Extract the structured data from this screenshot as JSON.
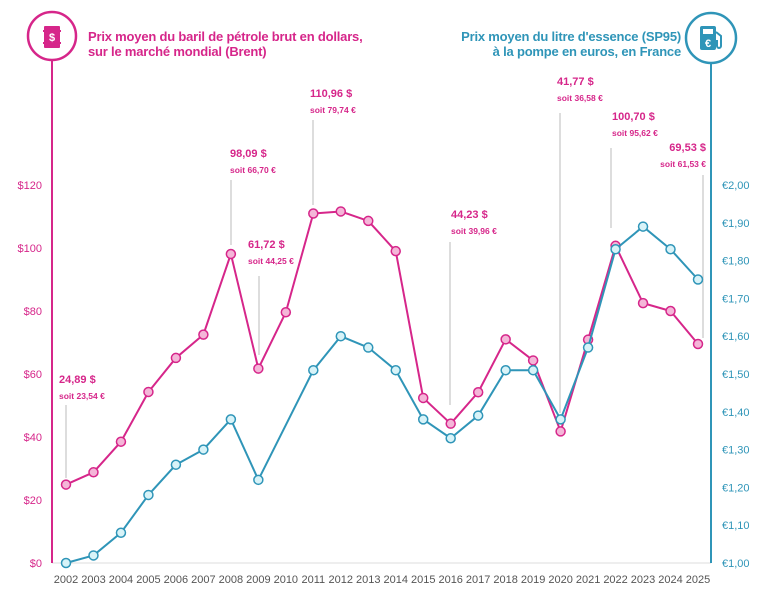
{
  "header": {
    "left_title_line1": "Prix moyen du baril de pétrole brut en dollars,",
    "left_title_line2": "sur le marché mondial (Brent)",
    "right_title_line1": "Prix moyen du litre d'essence (SP95)",
    "right_title_line2": "à la pompe en euros, en France",
    "left_icon": "oil-barrel-dollar-icon",
    "right_icon": "fuel-pump-euro-icon"
  },
  "colors": {
    "brent": "#d6268a",
    "brent_fill": "#f4b6d8",
    "fuel": "#2f95b8",
    "fuel_fill": "#d8f3f8",
    "leader": "#bbbbbb"
  },
  "chart_data": {
    "type": "line",
    "x": [
      2002,
      2003,
      2004,
      2005,
      2006,
      2007,
      2008,
      2009,
      2010,
      2011,
      2012,
      2013,
      2014,
      2015,
      2016,
      2017,
      2018,
      2019,
      2020,
      2021,
      2022,
      2023,
      2024,
      2025
    ],
    "x_tick_labels": [
      "2002",
      "2003",
      "2004",
      "2005",
      "2006",
      "2007",
      "2008",
      "2009",
      "2010",
      "2011",
      "2012",
      "2013",
      "2014",
      "2015",
      "2016",
      "2017",
      "2018",
      "2019",
      "2020",
      "2021",
      "2022",
      "2023",
      "2024",
      "2025"
    ],
    "left_axis": {
      "range": [
        0,
        120
      ],
      "ticks": [
        "$0",
        "$20",
        "$40",
        "$60",
        "$80",
        "$100",
        "$120"
      ],
      "tick_values": [
        0,
        20,
        40,
        60,
        80,
        100,
        120
      ]
    },
    "right_axis": {
      "range": [
        1.0,
        2.0
      ],
      "ticks": [
        "€1,00",
        "€1,10",
        "€1,20",
        "€1,30",
        "€1,40",
        "€1,50",
        "€1,60",
        "€1,70",
        "€1,80",
        "€1,90",
        "€2,00"
      ],
      "tick_values": [
        1.0,
        1.1,
        1.2,
        1.3,
        1.4,
        1.5,
        1.6,
        1.7,
        1.8,
        1.9,
        2.0
      ]
    },
    "series": [
      {
        "axis": "left",
        "values": [
          24.89,
          28.8,
          38.5,
          54.3,
          65.1,
          72.5,
          98.09,
          61.72,
          79.6,
          110.96,
          111.6,
          108.6,
          99.0,
          52.4,
          44.23,
          54.2,
          71.0,
          64.3,
          41.77,
          70.9,
          100.7,
          82.5,
          80.0,
          69.53
        ]
      },
      {
        "axis": "right",
        "values": [
          1.0,
          1.02,
          1.08,
          1.18,
          1.26,
          1.3,
          1.38,
          1.22,
          null,
          1.51,
          1.6,
          1.57,
          1.51,
          1.38,
          1.33,
          1.39,
          1.51,
          1.51,
          1.38,
          1.57,
          1.83,
          1.89,
          1.83,
          1.75
        ]
      }
    ],
    "annotations": [
      {
        "year": 2002,
        "usd": "24,89 $",
        "eur": "soit 23,54 €"
      },
      {
        "year": 2008,
        "usd": "98,09 $",
        "eur": "soit 66,70 €"
      },
      {
        "year": 2009,
        "usd": "61,72 $",
        "eur": "soit 44,25 €"
      },
      {
        "year": 2011,
        "usd": "110,96 $",
        "eur": "soit 79,74 €"
      },
      {
        "year": 2016,
        "usd": "44,23 $",
        "eur": "soit 39,96 €"
      },
      {
        "year": 2020,
        "usd": "41,77 $",
        "eur": "soit 36,58 €"
      },
      {
        "year": 2022,
        "usd": "100,70 $",
        "eur": "soit 95,62 €"
      },
      {
        "year": 2025,
        "usd": "69,53 $",
        "eur": "soit 61,53 €"
      }
    ]
  }
}
